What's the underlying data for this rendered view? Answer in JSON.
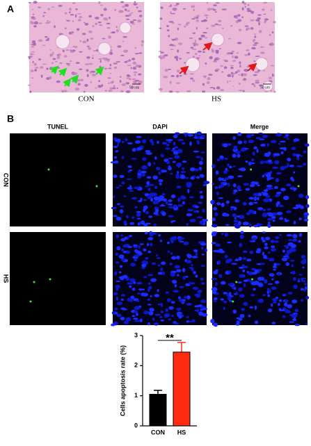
{
  "panel_a": {
    "label": "A",
    "captions": [
      "CON",
      "HS"
    ],
    "scale_bar": "50 um"
  },
  "panel_b": {
    "label": "B",
    "columns": [
      "TUNEL",
      "DAPI",
      "Merge"
    ],
    "rows": [
      "CON",
      "HS"
    ]
  },
  "chart_data": {
    "type": "bar",
    "y_label": "Cells apoptosis rate (%)",
    "categories": [
      "CON",
      "HS"
    ],
    "values": [
      1.05,
      2.45
    ],
    "errors": [
      0.13,
      0.32
    ],
    "colors": [
      "#000000",
      "#ff2a10"
    ],
    "ylim": [
      0,
      3
    ],
    "yticks": [
      0,
      1,
      2,
      3
    ],
    "significance": "**"
  }
}
